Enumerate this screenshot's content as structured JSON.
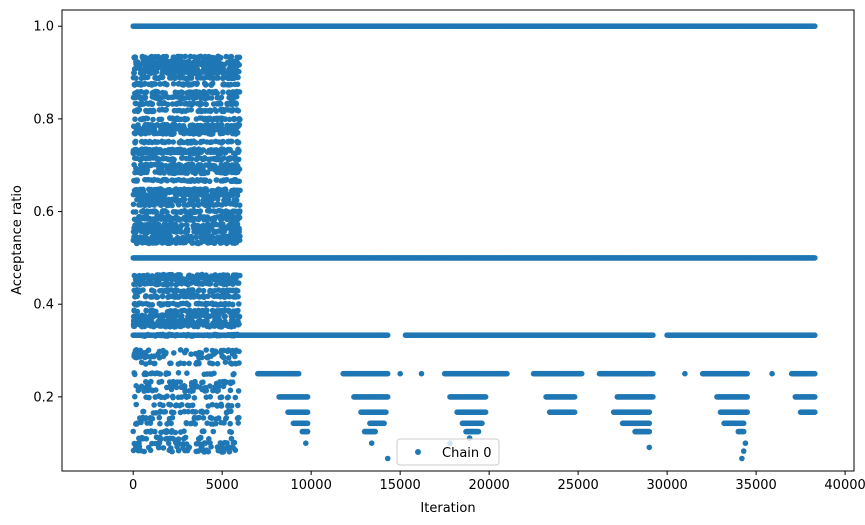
{
  "chart_data": {
    "type": "scatter",
    "xlabel": "Iteration",
    "ylabel": "Acceptance ratio",
    "xlim": [
      -4000,
      40500
    ],
    "ylim": [
      0.04,
      1.035
    ],
    "xticks": [
      0,
      5000,
      10000,
      15000,
      20000,
      25000,
      30000,
      35000,
      40000
    ],
    "xtick_labels": [
      "0",
      "5000",
      "10000",
      "15000",
      "20000",
      "25000",
      "30000",
      "35000",
      "40000"
    ],
    "yticks": [
      0.2,
      0.4,
      0.6,
      0.8,
      1.0
    ],
    "ytick_labels": [
      "0.2",
      "0.4",
      "0.6",
      "0.8",
      "1.0"
    ],
    "legend": {
      "position": "lower center",
      "entries": [
        "Chain 0"
      ]
    },
    "series": [
      {
        "name": "Chain 0",
        "color": "#1f77b4",
        "marker": "circle",
        "bands": [
          {
            "y": 1.0,
            "x": [
              0,
              38300
            ]
          },
          {
            "y": 0.5,
            "x": [
              0,
              38300
            ]
          },
          {
            "y": 0.333,
            "x": [
              0,
              6000
            ]
          },
          {
            "y": 0.333,
            "x": [
              6000,
              14300
            ]
          },
          {
            "y": 0.333,
            "x": [
              15300,
              29200
            ]
          },
          {
            "y": 0.333,
            "x": [
              30000,
              38300
            ]
          },
          {
            "y": 0.25,
            "x": [
              7000,
              9300
            ]
          },
          {
            "y": 0.25,
            "x": [
              11800,
              14300
            ]
          },
          {
            "y": 0.25,
            "x": [
              17500,
              21000
            ]
          },
          {
            "y": 0.25,
            "x": [
              22500,
              25200
            ]
          },
          {
            "y": 0.25,
            "x": [
              26200,
              29200
            ]
          },
          {
            "y": 0.25,
            "x": [
              32000,
              34500
            ]
          },
          {
            "y": 0.25,
            "x": [
              37000,
              38300
            ]
          },
          {
            "y": 0.2,
            "x": [
              8200,
              9800
            ]
          },
          {
            "y": 0.2,
            "x": [
              12400,
              14300
            ]
          },
          {
            "y": 0.2,
            "x": [
              17800,
              19800
            ]
          },
          {
            "y": 0.2,
            "x": [
              23200,
              24800
            ]
          },
          {
            "y": 0.2,
            "x": [
              27200,
              29200
            ]
          },
          {
            "y": 0.2,
            "x": [
              32800,
              34500
            ]
          },
          {
            "y": 0.2,
            "x": [
              37200,
              38300
            ]
          },
          {
            "y": 0.167,
            "x": [
              8700,
              9800
            ]
          },
          {
            "y": 0.167,
            "x": [
              12800,
              14200
            ]
          },
          {
            "y": 0.167,
            "x": [
              18200,
              19800
            ]
          },
          {
            "y": 0.167,
            "x": [
              23400,
              24800
            ]
          },
          {
            "y": 0.167,
            "x": [
              27000,
              29000
            ]
          },
          {
            "y": 0.167,
            "x": [
              33000,
              34500
            ]
          },
          {
            "y": 0.167,
            "x": [
              37500,
              38300
            ]
          },
          {
            "y": 0.143,
            "x": [
              9000,
              9800
            ]
          },
          {
            "y": 0.143,
            "x": [
              13300,
              14100
            ]
          },
          {
            "y": 0.143,
            "x": [
              18500,
              19600
            ]
          },
          {
            "y": 0.143,
            "x": [
              27500,
              29000
            ]
          },
          {
            "y": 0.143,
            "x": [
              33200,
              34300
            ]
          },
          {
            "y": 0.125,
            "x": [
              9500,
              9800
            ]
          },
          {
            "y": 0.125,
            "x": [
              13000,
              13600
            ]
          },
          {
            "y": 0.125,
            "x": [
              18700,
              19400
            ]
          },
          {
            "y": 0.125,
            "x": [
              28200,
              29000
            ]
          },
          {
            "y": 0.125,
            "x": [
              34000,
              34300
            ]
          }
        ],
        "early_levels": [
          0.933,
          0.923,
          0.917,
          0.909,
          0.9,
          0.889,
          0.875,
          0.857,
          0.846,
          0.833,
          0.818,
          0.8,
          0.786,
          0.778,
          0.769,
          0.75,
          0.733,
          0.727,
          0.714,
          0.7,
          0.692,
          0.684,
          0.667,
          0.647,
          0.643,
          0.636,
          0.625,
          0.615,
          0.6,
          0.588,
          0.583,
          0.571,
          0.563,
          0.556,
          0.545,
          0.538,
          0.533,
          0.462,
          0.455,
          0.444,
          0.429,
          0.417,
          0.4,
          0.385,
          0.375,
          0.364,
          0.357,
          0.353,
          0.333,
          0.3,
          0.294,
          0.286,
          0.273,
          0.25,
          0.231,
          0.222,
          0.214,
          0.2,
          0.182,
          0.167,
          0.154,
          0.143,
          0.125,
          0.111,
          0.1,
          0.091,
          0.083
        ],
        "early_x_range": [
          0,
          6000
        ],
        "isolated_points": [
          {
            "x": 13400,
            "y": 0.1
          },
          {
            "x": 14300,
            "y": 0.067
          },
          {
            "x": 17800,
            "y": 0.1
          },
          {
            "x": 18900,
            "y": 0.111
          },
          {
            "x": 29000,
            "y": 0.091
          },
          {
            "x": 34200,
            "y": 0.067
          },
          {
            "x": 34300,
            "y": 0.083
          },
          {
            "x": 34400,
            "y": 0.1
          },
          {
            "x": 9700,
            "y": 0.1
          },
          {
            "x": 15000,
            "y": 0.25
          },
          {
            "x": 31000,
            "y": 0.25
          },
          {
            "x": 35900,
            "y": 0.25
          },
          {
            "x": 16200,
            "y": 0.25
          },
          {
            "x": 15400,
            "y": 0.333
          }
        ]
      }
    ]
  }
}
